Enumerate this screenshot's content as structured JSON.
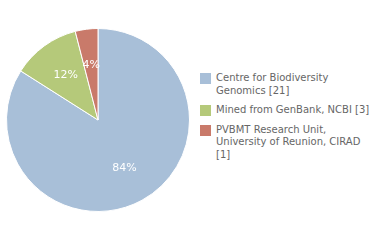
{
  "chart_data": {
    "type": "pie",
    "categories": [
      "Centre for Biodiversity\nGenomics [21]",
      "Mined from GenBank, NCBI [3]",
      "PVBMT Research Unit,\nUniversity of Reunion, CIRAD [1]"
    ],
    "values": [
      84,
      12,
      4
    ],
    "value_labels": [
      "84%",
      "12%",
      "4%"
    ],
    "colors": [
      "#a8bfd8",
      "#b5c97a",
      "#c97a6a"
    ],
    "data_labels": true,
    "legend": "right"
  }
}
